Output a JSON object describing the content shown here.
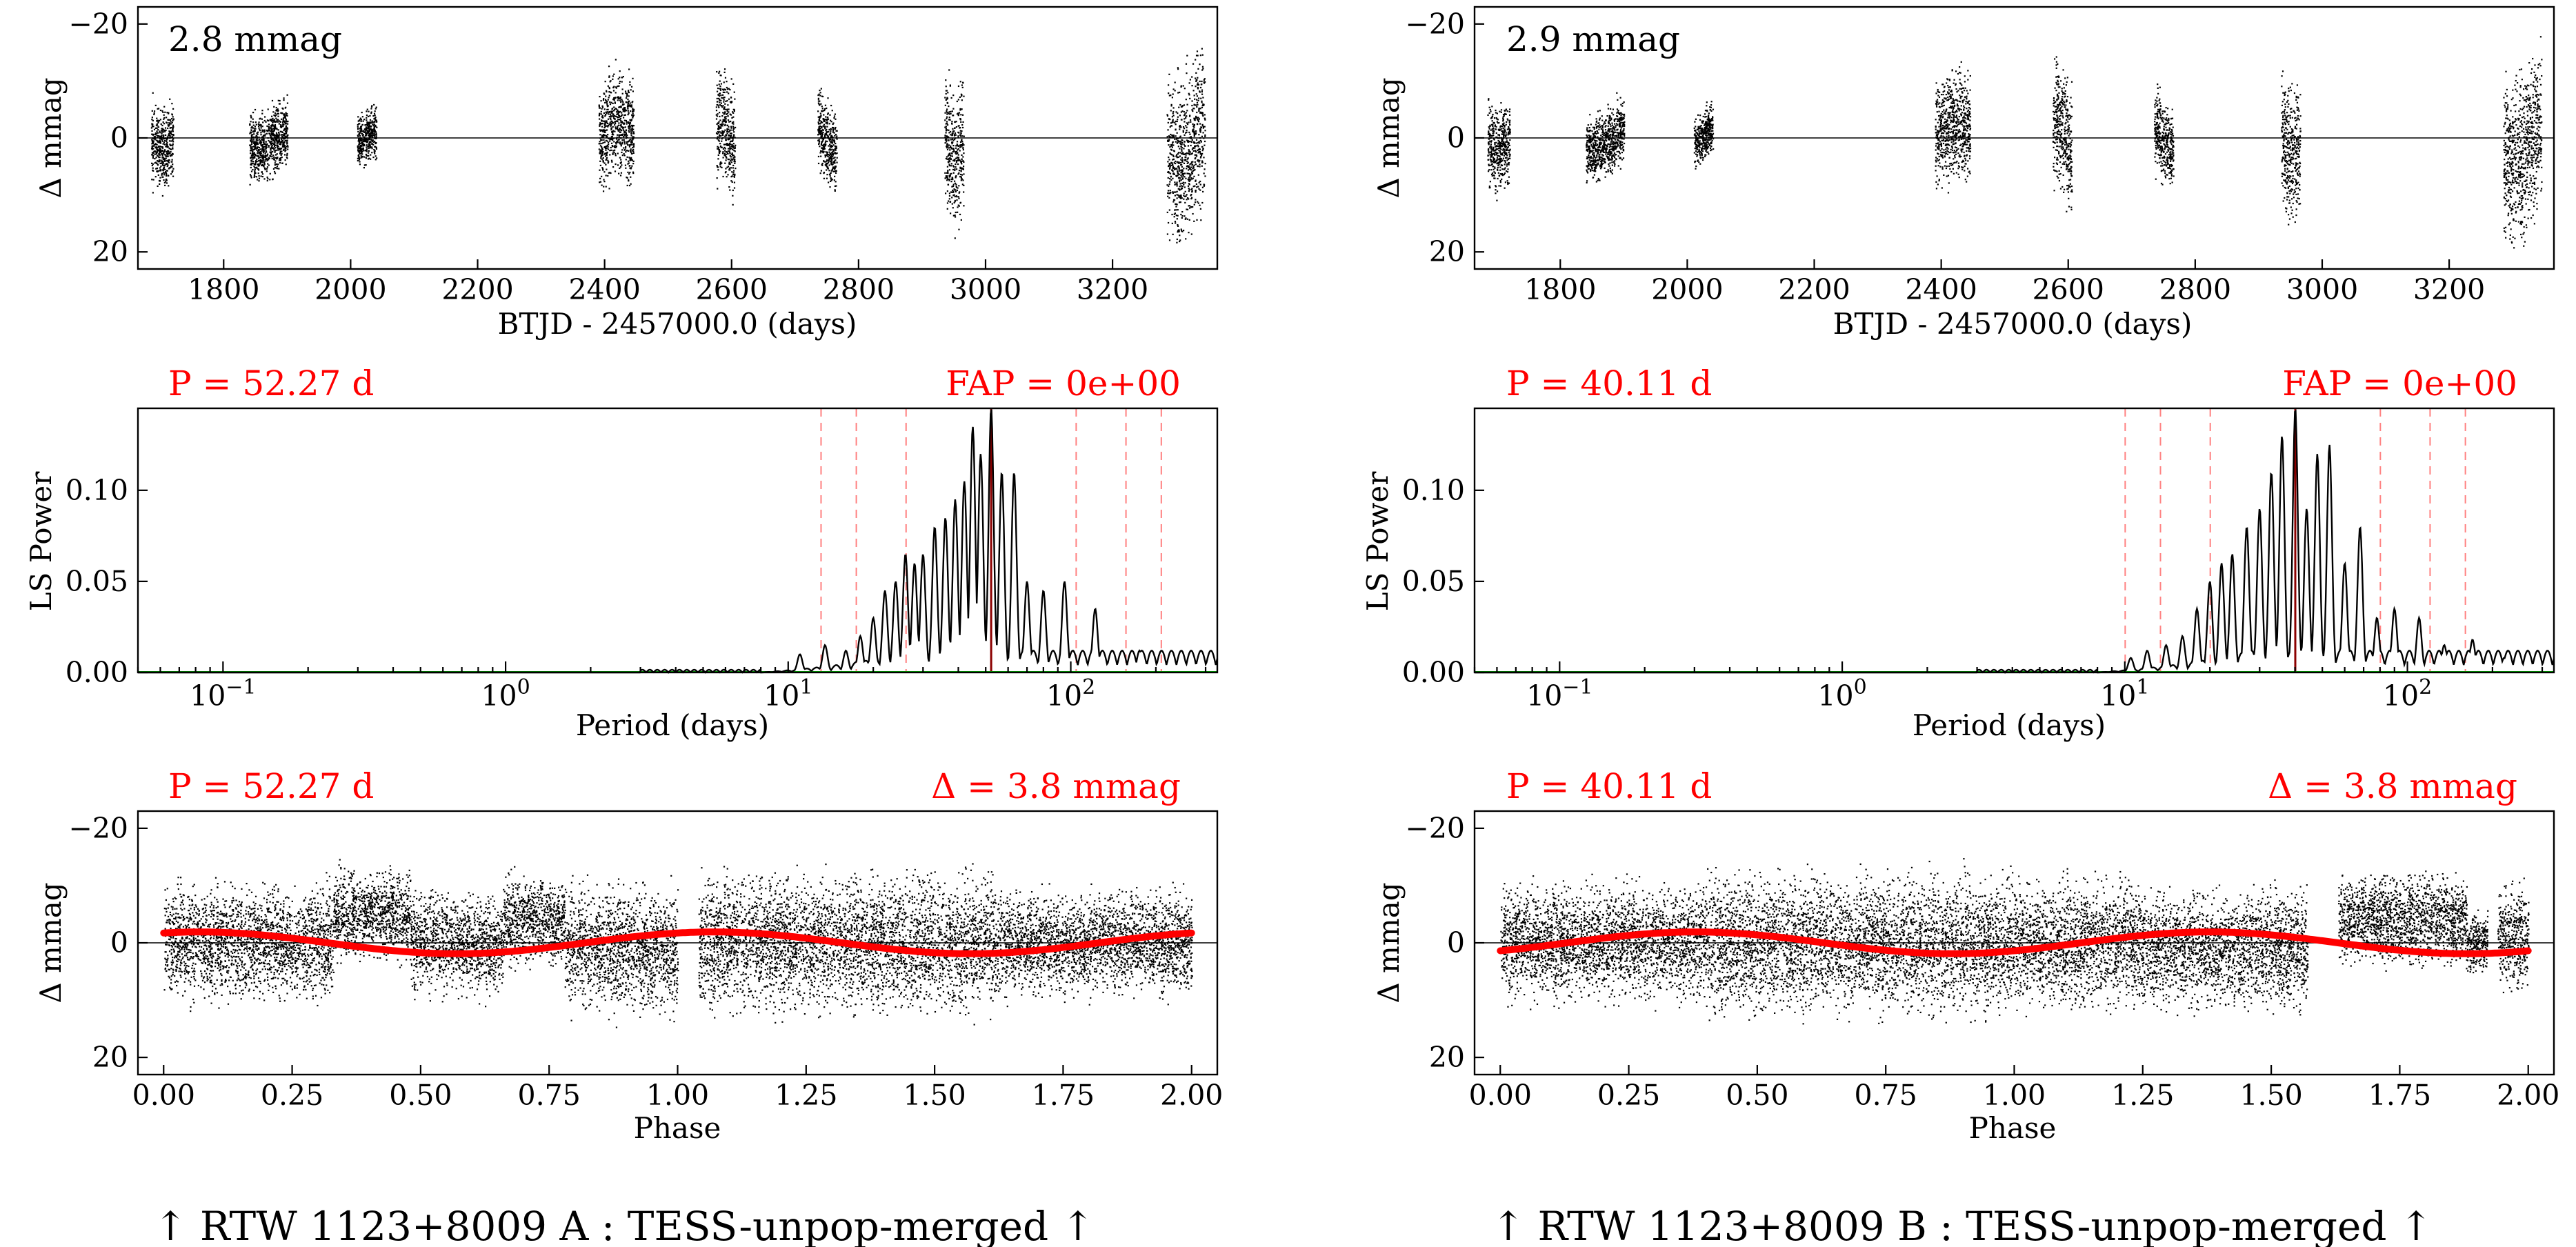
{
  "colors": {
    "data": "#000000",
    "fit": "#ff0000",
    "harmonic": "#ff8080",
    "peak": "#8b0000",
    "baseline": "#00aa00"
  },
  "chart_data": [
    {
      "id": "A-lc",
      "type": "scatter",
      "title": "2.8 mmag",
      "xlabel": "BTJD - 2457000.0 (days)",
      "ylabel": "Δ  mmag",
      "xlim": [
        1665,
        3365
      ],
      "ylim": [
        23,
        -23
      ],
      "inverted_y": true,
      "xticks": [
        1800,
        2000,
        2200,
        2400,
        2600,
        2800,
        3000,
        3200
      ],
      "yticks": [
        -20,
        0,
        20
      ],
      "segments": [
        {
          "start": 1685,
          "end": 1720,
          "amp": 6
        },
        {
          "start": 1840,
          "end": 1900,
          "amp": 5
        },
        {
          "start": 2010,
          "end": 2040,
          "amp": 4
        },
        {
          "start": 2390,
          "end": 2445,
          "amp": 8
        },
        {
          "start": 2575,
          "end": 2605,
          "amp": 8
        },
        {
          "start": 2735,
          "end": 2765,
          "amp": 6
        },
        {
          "start": 2935,
          "end": 2965,
          "amp": 10
        },
        {
          "start": 3285,
          "end": 3345,
          "amp": 12
        }
      ]
    },
    {
      "id": "A-ls",
      "type": "line",
      "title_left": "P = 52.27 d",
      "title_right": "FAP = 0e+00",
      "xlabel": "Period (days)",
      "ylabel": "LS Power",
      "xscale": "log",
      "xlim": [
        0.05,
        330
      ],
      "ylim": [
        0,
        0.145
      ],
      "xticks": [
        0.1,
        1,
        10,
        100
      ],
      "xtick_labels": [
        "10^-1",
        "10^0",
        "10^1",
        "10^2"
      ],
      "yticks": [
        0.0,
        0.05,
        0.1
      ],
      "ytick_labels": [
        "0.00",
        "0.05",
        "0.10"
      ],
      "best_period": 52.27,
      "harmonic_lines": [
        13.07,
        17.42,
        26.13,
        104.5,
        156.8,
        209.1
      ],
      "peaks": [
        {
          "p": 11,
          "h": 0.01
        },
        {
          "p": 13.5,
          "h": 0.015
        },
        {
          "p": 16,
          "h": 0.012
        },
        {
          "p": 18,
          "h": 0.02
        },
        {
          "p": 20,
          "h": 0.03
        },
        {
          "p": 22,
          "h": 0.045
        },
        {
          "p": 24,
          "h": 0.05
        },
        {
          "p": 26,
          "h": 0.065
        },
        {
          "p": 28,
          "h": 0.06
        },
        {
          "p": 30,
          "h": 0.065
        },
        {
          "p": 33,
          "h": 0.08
        },
        {
          "p": 36,
          "h": 0.085
        },
        {
          "p": 39,
          "h": 0.095
        },
        {
          "p": 42,
          "h": 0.105
        },
        {
          "p": 45,
          "h": 0.135
        },
        {
          "p": 48,
          "h": 0.12
        },
        {
          "p": 52.27,
          "h": 0.145
        },
        {
          "p": 57,
          "h": 0.11
        },
        {
          "p": 63,
          "h": 0.11
        },
        {
          "p": 70,
          "h": 0.05
        },
        {
          "p": 80,
          "h": 0.045
        },
        {
          "p": 95,
          "h": 0.05
        },
        {
          "p": 122,
          "h": 0.035
        },
        {
          "p": 175,
          "h": 0.012
        },
        {
          "p": 230,
          "h": 0.008
        }
      ]
    },
    {
      "id": "A-phase",
      "type": "scatter",
      "title_left": "P = 52.27 d",
      "title_right": "Δ = 3.8 mmag",
      "xlabel": "Phase",
      "ylabel": "Δ  mmag",
      "xlim": [
        -0.05,
        2.05
      ],
      "ylim": [
        23,
        -23
      ],
      "inverted_y": true,
      "xticks": [
        0.0,
        0.25,
        0.5,
        0.75,
        1.0,
        1.25,
        1.5,
        1.75,
        2.0
      ],
      "xtick_labels": [
        "0.00",
        "0.25",
        "0.50",
        "0.75",
        "1.00",
        "1.25",
        "1.50",
        "1.75",
        "2.00"
      ],
      "yticks": [
        -20,
        0,
        20
      ],
      "fit": {
        "amplitude": 1.9,
        "peak_phase": 0.07
      },
      "gaps": [
        [
          1.0,
          1.04
        ]
      ],
      "segments": [
        {
          "start": 0.0,
          "end": 0.33,
          "center": 0,
          "amp": 9
        },
        {
          "start": 0.33,
          "end": 0.48,
          "center": -5,
          "amp": 7
        },
        {
          "start": 0.48,
          "end": 0.66,
          "center": 0,
          "amp": 8
        },
        {
          "start": 0.66,
          "end": 0.78,
          "center": -4,
          "amp": 7
        },
        {
          "start": 0.78,
          "end": 1.0,
          "center": 1,
          "amp": 10
        },
        {
          "start": 1.04,
          "end": 1.62,
          "center": 0,
          "amp": 11
        },
        {
          "start": 1.62,
          "end": 2.0,
          "center": 0,
          "amp": 8
        }
      ]
    },
    {
      "id": "B-lc",
      "type": "scatter",
      "title": "2.9 mmag",
      "xlabel": "BTJD - 2457000.0 (days)",
      "ylabel": "Δ  mmag",
      "xlim": [
        1665,
        3365
      ],
      "ylim": [
        23,
        -23
      ],
      "inverted_y": true,
      "xticks": [
        1800,
        2000,
        2200,
        2400,
        2600,
        2800,
        3000,
        3200
      ],
      "yticks": [
        -20,
        0,
        20
      ],
      "segments": [
        {
          "start": 1685,
          "end": 1720,
          "amp": 6
        },
        {
          "start": 1840,
          "end": 1900,
          "amp": 5
        },
        {
          "start": 2010,
          "end": 2040,
          "amp": 4
        },
        {
          "start": 2390,
          "end": 2445,
          "amp": 8
        },
        {
          "start": 2575,
          "end": 2605,
          "amp": 9
        },
        {
          "start": 2735,
          "end": 2765,
          "amp": 6
        },
        {
          "start": 2935,
          "end": 2965,
          "amp": 10
        },
        {
          "start": 3285,
          "end": 3345,
          "amp": 12
        }
      ]
    },
    {
      "id": "B-ls",
      "type": "line",
      "title_left": "P = 40.11 d",
      "title_right": "FAP = 0e+00",
      "xlabel": "Period (days)",
      "ylabel": "LS Power",
      "xscale": "log",
      "xlim": [
        0.05,
        330
      ],
      "ylim": [
        0,
        0.145
      ],
      "xticks": [
        0.1,
        1,
        10,
        100
      ],
      "xtick_labels": [
        "10^-1",
        "10^0",
        "10^1",
        "10^2"
      ],
      "yticks": [
        0.0,
        0.05,
        0.1
      ],
      "ytick_labels": [
        "0.00",
        "0.05",
        "0.10"
      ],
      "best_period": 40.11,
      "harmonic_lines": [
        10.03,
        13.37,
        20.06,
        80.22,
        120.3,
        160.4
      ],
      "peaks": [
        {
          "p": 10.5,
          "h": 0.008
        },
        {
          "p": 12,
          "h": 0.012
        },
        {
          "p": 14,
          "h": 0.015
        },
        {
          "p": 16,
          "h": 0.02
        },
        {
          "p": 18,
          "h": 0.035
        },
        {
          "p": 20,
          "h": 0.05
        },
        {
          "p": 22,
          "h": 0.06
        },
        {
          "p": 24,
          "h": 0.065
        },
        {
          "p": 27,
          "h": 0.08
        },
        {
          "p": 30,
          "h": 0.09
        },
        {
          "p": 33,
          "h": 0.11
        },
        {
          "p": 36,
          "h": 0.13
        },
        {
          "p": 40.11,
          "h": 0.145
        },
        {
          "p": 44,
          "h": 0.09
        },
        {
          "p": 48,
          "h": 0.12
        },
        {
          "p": 53,
          "h": 0.125
        },
        {
          "p": 60,
          "h": 0.06
        },
        {
          "p": 68,
          "h": 0.08
        },
        {
          "p": 78,
          "h": 0.03
        },
        {
          "p": 90,
          "h": 0.035
        },
        {
          "p": 110,
          "h": 0.03
        },
        {
          "p": 135,
          "h": 0.015
        },
        {
          "p": 170,
          "h": 0.018
        },
        {
          "p": 220,
          "h": 0.008
        }
      ]
    },
    {
      "id": "B-phase",
      "type": "scatter",
      "title_left": "P = 40.11 d",
      "title_right": "Δ = 3.8 mmag",
      "xlabel": "Phase",
      "ylabel": "Δ  mmag",
      "xlim": [
        -0.05,
        2.05
      ],
      "ylim": [
        23,
        -23
      ],
      "inverted_y": true,
      "xticks": [
        0.0,
        0.25,
        0.5,
        0.75,
        1.0,
        1.25,
        1.5,
        1.75,
        2.0
      ],
      "xtick_labels": [
        "0.00",
        "0.25",
        "0.50",
        "0.75",
        "1.00",
        "1.25",
        "1.50",
        "1.75",
        "2.00"
      ],
      "yticks": [
        -20,
        0,
        20
      ],
      "fit": {
        "amplitude": 1.9,
        "peak_phase": 0.38
      },
      "gaps": [
        [
          1.57,
          1.63
        ]
      ],
      "segments": [
        {
          "start": 0.0,
          "end": 0.4,
          "center": 0,
          "amp": 9
        },
        {
          "start": 0.4,
          "end": 1.0,
          "center": 0,
          "amp": 11
        },
        {
          "start": 1.0,
          "end": 1.25,
          "center": 0,
          "amp": 10
        },
        {
          "start": 1.25,
          "end": 1.57,
          "center": 1,
          "amp": 9
        },
        {
          "start": 1.63,
          "end": 1.88,
          "center": -4,
          "amp": 7
        },
        {
          "start": 1.88,
          "end": 1.92,
          "center": 0,
          "amp": 5
        },
        {
          "start": 1.94,
          "end": 2.0,
          "center": -1,
          "amp": 8
        }
      ]
    }
  ],
  "captions": {
    "left": "↑ RTW 1123+8009 A : TESS-unpop-merged ↑",
    "right": "↑ RTW 1123+8009 B : TESS-unpop-merged ↑"
  }
}
